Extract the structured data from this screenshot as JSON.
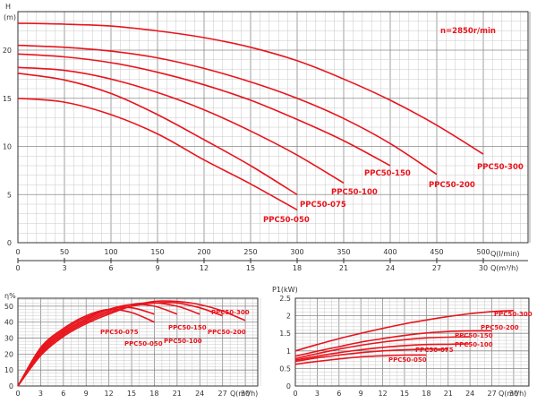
{
  "chart_data": [
    {
      "id": "head",
      "type": "line",
      "ylabel_top": "H",
      "ylabel_unit": "(m)",
      "xlabel_primary": "Q(l/min)",
      "xlabel_secondary": "Q(m³/h)",
      "annotation": "n=2850r/min",
      "xlim": [
        0,
        500
      ],
      "ylim": [
        0,
        24
      ],
      "x_ticks": [
        "0",
        "50",
        "100",
        "150",
        "200",
        "250",
        "300",
        "350",
        "400",
        "450",
        "500"
      ],
      "x2_ticks": [
        "0",
        "3",
        "6",
        "9",
        "12",
        "15",
        "18",
        "21",
        "24",
        "27",
        "30"
      ],
      "y_ticks": [
        "0",
        "5",
        "10",
        "15",
        "20"
      ],
      "color": "#e8141c",
      "series": [
        {
          "name": "PPC50-050",
          "x": [
            0,
            50,
            100,
            150,
            200,
            250,
            300
          ],
          "y": [
            15,
            14.6,
            13.3,
            11.3,
            8.6,
            6.1,
            3.4
          ]
        },
        {
          "name": "PPC50-075",
          "x": [
            0,
            50,
            100,
            150,
            200,
            250,
            300
          ],
          "y": [
            17.6,
            16.9,
            15.5,
            13.3,
            10.7,
            8.0,
            5.0
          ]
        },
        {
          "name": "PPC50-100",
          "x": [
            0,
            50,
            100,
            150,
            200,
            250,
            300,
            350
          ],
          "y": [
            18.2,
            17.9,
            17.0,
            15.6,
            13.8,
            11.6,
            9.1,
            6.2
          ]
        },
        {
          "name": "PPC50-150",
          "x": [
            0,
            50,
            100,
            150,
            200,
            250,
            300,
            350,
            400
          ],
          "y": [
            19.6,
            19.3,
            18.7,
            17.7,
            16.4,
            14.8,
            12.8,
            10.6,
            8.0
          ]
        },
        {
          "name": "PPC50-200",
          "x": [
            0,
            50,
            100,
            150,
            200,
            250,
            300,
            350,
            400,
            450
          ],
          "y": [
            20.5,
            20.3,
            19.9,
            19.2,
            18.1,
            16.7,
            15.0,
            12.9,
            10.3,
            7.1
          ]
        },
        {
          "name": "PPC50-300",
          "x": [
            0,
            50,
            100,
            150,
            200,
            250,
            300,
            350,
            400,
            450,
            500
          ],
          "y": [
            22.8,
            22.7,
            22.5,
            22.0,
            21.3,
            20.3,
            18.9,
            17.0,
            14.8,
            12.2,
            9.2
          ]
        }
      ]
    },
    {
      "id": "efficiency",
      "type": "line",
      "ylabel": "η%",
      "xlabel": "Q(m³/h)",
      "xlim": [
        0,
        33
      ],
      "ylim": [
        0,
        55
      ],
      "x_ticks": [
        "0",
        "3",
        "6",
        "9",
        "12",
        "15",
        "18",
        "21",
        "24",
        "27",
        "30"
      ],
      "y_ticks": [
        "0",
        "10",
        "20",
        "30",
        "40",
        "50"
      ],
      "color": "#e8141c",
      "series": [
        {
          "name": "PPC50-050",
          "x": [
            0,
            3,
            6,
            9,
            12,
            15,
            18
          ],
          "y": [
            0,
            24,
            36,
            44,
            48,
            46,
            40
          ]
        },
        {
          "name": "PPC50-075",
          "x": [
            0,
            3,
            6,
            9,
            12,
            15,
            18
          ],
          "y": [
            0,
            23,
            35,
            43,
            48,
            49,
            45
          ]
        },
        {
          "name": "PPC50-100",
          "x": [
            0,
            3,
            6,
            9,
            12,
            15,
            18,
            21
          ],
          "y": [
            0,
            22,
            34,
            42,
            48,
            51,
            50,
            45
          ]
        },
        {
          "name": "PPC50-150",
          "x": [
            0,
            3,
            6,
            9,
            12,
            15,
            18,
            21,
            24
          ],
          "y": [
            0,
            21,
            33,
            41,
            47,
            51,
            52,
            50,
            45
          ]
        },
        {
          "name": "PPC50-200",
          "x": [
            0,
            3,
            6,
            9,
            12,
            15,
            18,
            21,
            24,
            27
          ],
          "y": [
            0,
            20,
            32,
            40,
            46,
            50,
            52,
            52,
            49,
            44
          ]
        },
        {
          "name": "PPC50-300",
          "x": [
            0,
            3,
            6,
            9,
            12,
            15,
            18,
            21,
            24,
            27,
            30
          ],
          "y": [
            0,
            19,
            31,
            39,
            45,
            50,
            53,
            53,
            51,
            47,
            41
          ]
        }
      ]
    },
    {
      "id": "power",
      "type": "line",
      "ylabel": "P1(kW)",
      "xlabel": "Q(m³/h)",
      "xlim": [
        0,
        33
      ],
      "ylim": [
        0,
        2.5
      ],
      "x_ticks": [
        "0",
        "3",
        "6",
        "9",
        "12",
        "15",
        "18",
        "21",
        "24",
        "27",
        "30"
      ],
      "y_ticks": [
        "0",
        "0.5",
        "1",
        "1.5",
        "2",
        "2.5"
      ],
      "color": "#e8141c",
      "series": [
        {
          "name": "PPC50-050",
          "x": [
            0,
            3,
            6,
            9,
            12,
            15,
            18
          ],
          "y": [
            0.62,
            0.7,
            0.77,
            0.83,
            0.86,
            0.88,
            0.88
          ]
        },
        {
          "name": "PPC50-075",
          "x": [
            0,
            3,
            6,
            9,
            12,
            15,
            18,
            21
          ],
          "y": [
            0.7,
            0.8,
            0.88,
            0.95,
            1.0,
            1.03,
            1.05,
            1.05
          ]
        },
        {
          "name": "PPC50-100",
          "x": [
            0,
            3,
            6,
            9,
            12,
            15,
            18,
            21,
            24
          ],
          "y": [
            0.74,
            0.85,
            0.95,
            1.03,
            1.1,
            1.15,
            1.18,
            1.19,
            1.2
          ]
        },
        {
          "name": "PPC50-150",
          "x": [
            0,
            3,
            6,
            9,
            12,
            15,
            18,
            21,
            24
          ],
          "y": [
            0.78,
            0.92,
            1.05,
            1.16,
            1.25,
            1.32,
            1.37,
            1.39,
            1.4
          ]
        },
        {
          "name": "PPC50-200",
          "x": [
            0,
            3,
            6,
            9,
            12,
            15,
            18,
            21,
            24,
            27
          ],
          "y": [
            0.85,
            0.99,
            1.12,
            1.25,
            1.35,
            1.44,
            1.51,
            1.55,
            1.57,
            1.57
          ]
        },
        {
          "name": "PPC50-300",
          "x": [
            0,
            3,
            6,
            9,
            12,
            15,
            18,
            21,
            24,
            27,
            30
          ],
          "y": [
            1.0,
            1.18,
            1.35,
            1.5,
            1.64,
            1.77,
            1.88,
            1.98,
            2.06,
            2.12,
            2.15
          ]
        }
      ]
    }
  ]
}
